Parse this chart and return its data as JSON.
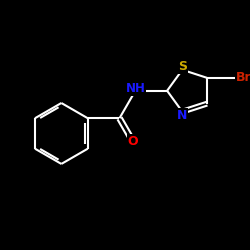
{
  "background_color": "#000000",
  "atom_colors": {
    "C": "#ffffff",
    "H": "#ffffff",
    "N": "#1a1aff",
    "O": "#ff0000",
    "S": "#ccaa00",
    "Br": "#cc2200"
  },
  "bond_color": "#ffffff",
  "bond_width": 1.5,
  "dbo": 0.055,
  "figsize": [
    2.5,
    2.5
  ],
  "dpi": 100,
  "xlim": [
    -2.8,
    2.8
  ],
  "ylim": [
    -2.8,
    2.8
  ]
}
